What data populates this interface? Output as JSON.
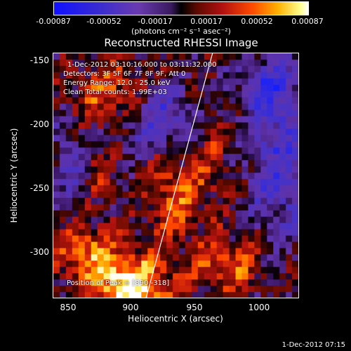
{
  "colorbar": {
    "tick_labels": [
      "-0.00087",
      "-0.00052",
      "-0.00017",
      "0.00017",
      "0.00052",
      "0.00087"
    ],
    "units": "(photons cm⁻² s⁻¹ asec⁻²)"
  },
  "plot": {
    "title": "Reconstructed RHESSI Image",
    "annotations": {
      "time_range": "1-Dec-2012 03:10:16.000 to 03:11:32.000",
      "detectors": "Detectors: 3F 5F 6F 7F 8F 9F, Att 0",
      "energy_range": "Energy Range: 12.0 - 25.0 keV",
      "clean_counts": "Clean    Total counts: 1.99E+03",
      "peak_position": "Position of Peak = [890,-318]"
    }
  },
  "chart_data": {
    "type": "heatmap",
    "title": "Reconstructed RHESSI Image",
    "xlabel": "Heliocentric X (arcsec)",
    "ylabel": "Heliocentric Y (arcsec)",
    "xlim": [
      838,
      1030
    ],
    "ylim": [
      -338,
      -145
    ],
    "x_ticks": [
      "850",
      "900",
      "950",
      "1000"
    ],
    "y_ticks": [
      "-150",
      "-200",
      "-250",
      "-300"
    ],
    "color_range": [
      -0.00087,
      0.00087
    ],
    "limb_line": [
      [
        910,
        -338
      ],
      [
        962,
        -145
      ]
    ]
  },
  "footer": {
    "date": "1-Dec-2012 07:15"
  }
}
